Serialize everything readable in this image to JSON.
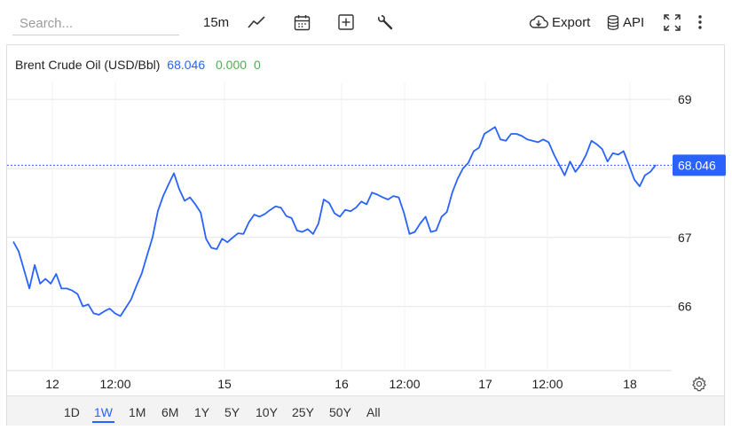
{
  "toolbar": {
    "search_placeholder": "Search...",
    "interval_label": "15m",
    "export_label": "Export",
    "api_label": "API",
    "icons": [
      "line-chart-icon",
      "calendar-icon",
      "add-box-icon",
      "wrench-icon",
      "cloud-download-icon",
      "database-icon",
      "fullscreen-icon",
      "more-vertical-icon"
    ]
  },
  "legend": {
    "name": "Brent Crude Oil (USD/Bbl)",
    "price": "68.046",
    "change": "0.000",
    "change_pct": "0"
  },
  "ranges": [
    "1D",
    "1W",
    "1M",
    "6M",
    "1Y",
    "5Y",
    "10Y",
    "25Y",
    "50Y",
    "All"
  ],
  "active_range": "1W",
  "colors": {
    "line": "#2962ff",
    "price_tag": "#2962ff",
    "change": "#4caf50",
    "grid": "#e6e6e6"
  },
  "chart_data": {
    "type": "line",
    "title": "Brent Crude Oil (USD/Bbl)",
    "xlabel": "",
    "ylabel": "",
    "ylim": [
      65.07,
      69.22
    ],
    "y_ticks": [
      66,
      67,
      69
    ],
    "x_ticks": [
      "12",
      "12:00",
      "15",
      "16",
      "12:00",
      "17",
      "12:00",
      "18"
    ],
    "last_price": 68.046,
    "last_price_label": "68.046",
    "grid": true,
    "series": [
      {
        "points": [
          [
            0,
            66.94
          ],
          [
            1,
            66.8
          ],
          [
            2,
            66.53
          ],
          [
            3,
            66.26
          ],
          [
            4,
            66.6
          ],
          [
            5,
            66.33
          ],
          [
            6,
            66.4
          ],
          [
            7,
            66.33
          ],
          [
            8,
            66.47
          ],
          [
            9,
            66.26
          ],
          [
            10,
            66.26
          ],
          [
            11,
            66.23
          ],
          [
            12,
            66.18
          ],
          [
            13,
            66.0
          ],
          [
            14,
            66.03
          ],
          [
            15,
            65.9
          ],
          [
            16,
            65.88
          ],
          [
            17,
            65.93
          ],
          [
            18,
            65.97
          ],
          [
            19,
            65.9
          ],
          [
            20,
            65.86
          ],
          [
            21,
            65.98
          ],
          [
            22,
            66.1
          ],
          [
            23,
            66.3
          ],
          [
            24,
            66.48
          ],
          [
            25,
            66.74
          ],
          [
            26,
            67.0
          ],
          [
            27,
            67.38
          ],
          [
            28,
            67.6
          ],
          [
            29,
            67.77
          ],
          [
            30,
            67.93
          ],
          [
            31,
            67.7
          ],
          [
            32,
            67.53
          ],
          [
            33,
            67.58
          ],
          [
            34,
            67.48
          ],
          [
            35,
            67.36
          ],
          [
            36,
            66.98
          ],
          [
            37,
            66.85
          ],
          [
            38,
            66.83
          ],
          [
            39,
            66.98
          ],
          [
            40,
            66.93
          ],
          [
            41,
            67.0
          ],
          [
            42,
            67.06
          ],
          [
            43,
            67.05
          ],
          [
            44,
            67.22
          ],
          [
            45,
            67.33
          ],
          [
            46,
            67.3
          ],
          [
            47,
            67.34
          ],
          [
            48,
            67.4
          ],
          [
            49,
            67.45
          ],
          [
            50,
            67.43
          ],
          [
            51,
            67.31
          ],
          [
            52,
            67.28
          ],
          [
            53,
            67.1
          ],
          [
            54,
            67.08
          ],
          [
            55,
            67.12
          ],
          [
            56,
            67.05
          ],
          [
            57,
            67.2
          ],
          [
            58,
            67.55
          ],
          [
            59,
            67.5
          ],
          [
            60,
            67.35
          ],
          [
            61,
            67.3
          ],
          [
            62,
            67.4
          ],
          [
            63,
            67.38
          ],
          [
            64,
            67.43
          ],
          [
            65,
            67.52
          ],
          [
            66,
            67.48
          ],
          [
            67,
            67.65
          ],
          [
            68,
            67.62
          ],
          [
            69,
            67.58
          ],
          [
            70,
            67.55
          ],
          [
            71,
            67.6
          ],
          [
            72,
            67.58
          ],
          [
            73,
            67.35
          ],
          [
            74,
            67.05
          ],
          [
            75,
            67.08
          ],
          [
            76,
            67.2
          ],
          [
            77,
            67.3
          ],
          [
            78,
            67.08
          ],
          [
            79,
            67.1
          ],
          [
            80,
            67.3
          ],
          [
            81,
            67.37
          ],
          [
            82,
            67.65
          ],
          [
            83,
            67.85
          ],
          [
            84,
            68.0
          ],
          [
            85,
            68.08
          ],
          [
            86,
            68.25
          ],
          [
            87,
            68.3
          ],
          [
            88,
            68.5
          ],
          [
            89,
            68.55
          ],
          [
            90,
            68.6
          ],
          [
            91,
            68.42
          ],
          [
            92,
            68.4
          ],
          [
            93,
            68.5
          ],
          [
            94,
            68.5
          ],
          [
            95,
            68.47
          ],
          [
            96,
            68.42
          ],
          [
            97,
            68.4
          ],
          [
            98,
            68.38
          ],
          [
            99,
            68.42
          ],
          [
            100,
            68.38
          ],
          [
            101,
            68.2
          ],
          [
            102,
            68.05
          ],
          [
            103,
            67.9
          ],
          [
            104,
            68.1
          ],
          [
            105,
            67.95
          ],
          [
            106,
            68.05
          ],
          [
            107,
            68.2
          ],
          [
            108,
            68.4
          ],
          [
            109,
            68.35
          ],
          [
            110,
            68.28
          ],
          [
            111,
            68.1
          ],
          [
            112,
            68.22
          ],
          [
            113,
            68.2
          ],
          [
            114,
            68.25
          ],
          [
            115,
            68.05
          ],
          [
            116,
            67.84
          ],
          [
            117,
            67.74
          ],
          [
            118,
            67.9
          ],
          [
            119,
            67.95
          ],
          [
            120,
            68.05
          ]
        ]
      }
    ]
  }
}
